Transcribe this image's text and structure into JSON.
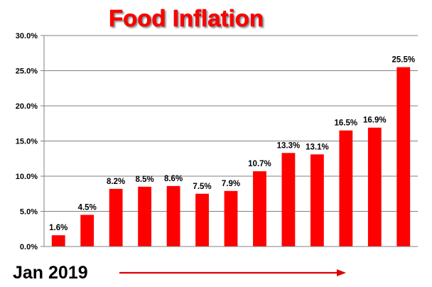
{
  "colors": {
    "bar": "#ff0000",
    "arrow": "#e00000",
    "grid": "#808080",
    "axis": "#808080"
  },
  "footer": {
    "caption": "Jan 2019"
  },
  "chart_data": {
    "type": "bar",
    "title": "Food Inflation",
    "xlabel": "",
    "ylabel": "",
    "ylim": [
      0,
      30
    ],
    "grid": true,
    "yticks": [
      0,
      5,
      10,
      15,
      20,
      25,
      30
    ],
    "ytick_labels": [
      "0.0%",
      "5.0%",
      "10.0%",
      "15.0%",
      "20.0%",
      "25.0%",
      "30.0%"
    ],
    "values": [
      1.6,
      4.5,
      8.2,
      8.5,
      8.6,
      7.5,
      7.9,
      10.7,
      13.3,
      13.1,
      16.5,
      16.9,
      25.5
    ],
    "data_labels": [
      "1.6%",
      "4.5%",
      "8.2%",
      "8.5%",
      "8.6%",
      "7.5%",
      "7.9%",
      "10.7%",
      "13.3%",
      "13.1%",
      "16.5%",
      "16.9%",
      "25.5%"
    ]
  }
}
